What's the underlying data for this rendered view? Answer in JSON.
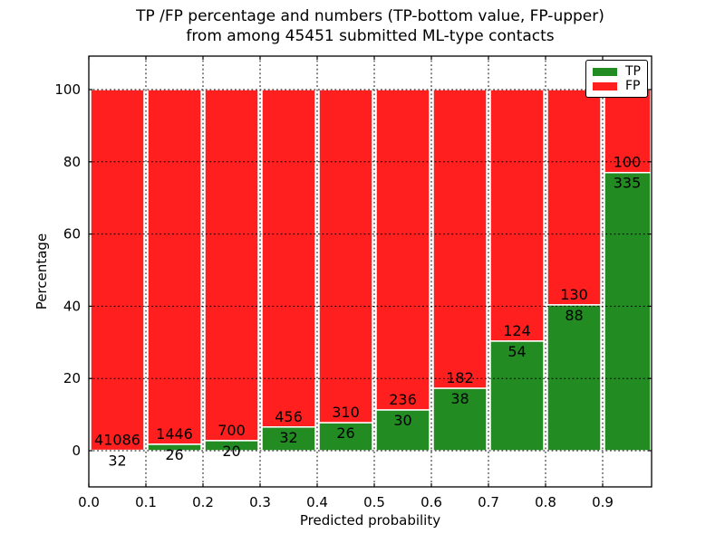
{
  "chart_data": {
    "type": "bar",
    "stacked": true,
    "title_line1": "TP /FP percentage and numbers (TP-bottom value, FP-upper)",
    "title_line2": "from among 45451 submitted ML-type contacts",
    "total_submitted": 45451,
    "xlabel": "Predicted probability",
    "ylabel": "Percentage",
    "xtick_labels": [
      "0.0",
      "0.1",
      "0.2",
      "0.3",
      "0.4",
      "0.5",
      "0.6",
      "0.7",
      "0.8",
      "0.9"
    ],
    "ytick_values": [
      0,
      20,
      40,
      60,
      80,
      100
    ],
    "ytick_labels": [
      "0",
      "20",
      "40",
      "60",
      "80",
      "100"
    ],
    "xlim": [
      0,
      0.986
    ],
    "ylim": [
      -10,
      109.3
    ],
    "grid": "dotted both axes, drawn over bars",
    "legend_position": "upper right",
    "bin_starts": [
      0.0,
      0.1,
      0.2,
      0.3,
      0.4,
      0.5,
      0.6,
      0.7,
      0.8,
      0.9
    ],
    "series": [
      {
        "name": "TP",
        "color": "#228b22",
        "counts": [
          32,
          26,
          20,
          32,
          26,
          30,
          38,
          54,
          88,
          335
        ],
        "pct": [
          0.08,
          1.77,
          2.78,
          6.56,
          7.74,
          11.28,
          17.27,
          30.34,
          40.37,
          77.01
        ]
      },
      {
        "name": "FP",
        "color": "#ff1f1f",
        "counts": [
          41086,
          1446,
          700,
          456,
          310,
          236,
          182,
          124,
          130,
          100
        ],
        "pct": [
          99.92,
          98.23,
          97.22,
          93.44,
          92.26,
          88.72,
          82.73,
          69.66,
          59.63,
          22.99
        ]
      }
    ]
  },
  "legend": {
    "entries": [
      {
        "label": "TP",
        "color": "#228b22"
      },
      {
        "label": "FP",
        "color": "#ff1f1f"
      }
    ]
  }
}
